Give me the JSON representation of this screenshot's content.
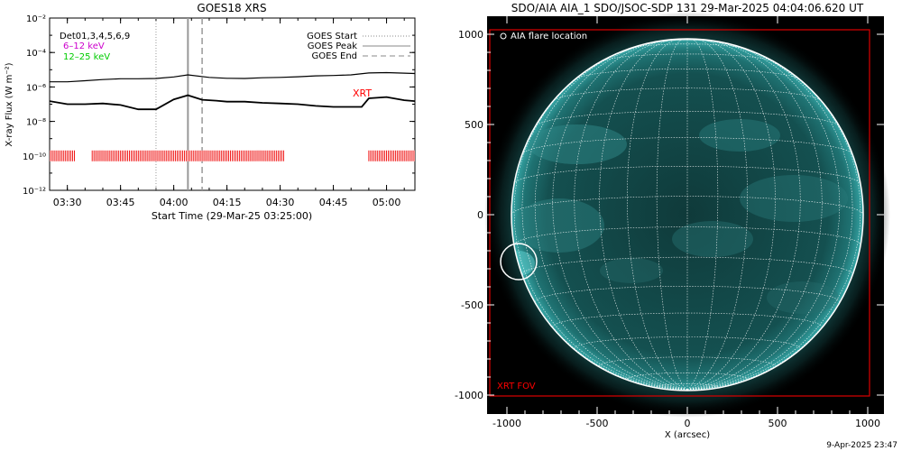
{
  "chart_data": [
    {
      "type": "line",
      "title": "GOES18 XRS",
      "xlabel": "Start Time (29-Mar-25 03:25:00)",
      "ylabel": "X-ray Flux (W m⁻²)",
      "ylim": [
        1e-12,
        0.01
      ],
      "yscale": "log",
      "xlim_minutes_after_03_25": [
        0,
        103
      ],
      "xticks": [
        "03:30",
        "03:45",
        "04:00",
        "04:15",
        "04:30",
        "04:45",
        "05:00"
      ],
      "yticks": [
        "10⁻²",
        "10⁻⁴",
        "10⁻⁶",
        "10⁻⁸",
        "10⁻¹⁰",
        "10⁻¹²"
      ],
      "legend_top_left": [
        "Det01,3,4,5,6,9",
        "6–12 keV",
        "12–25 keV"
      ],
      "legend_top_left_colors": [
        "#000000",
        "#cc00cc",
        "#00cc00"
      ],
      "legend_top_right": [
        {
          "label": "GOES Start",
          "style": "dotted"
        },
        {
          "label": "GOES Peak",
          "style": "solid"
        },
        {
          "label": "GOES End",
          "style": "dashed"
        }
      ],
      "annotation": "XRT",
      "annotation_color": "#ff0000",
      "marker_times": {
        "goes_start": "03:55",
        "goes_peak": "04:04",
        "goes_end": "04:08"
      },
      "series": [
        {
          "x": [
            "03:25",
            "03:30",
            "03:35",
            "03:40",
            "03:45",
            "03:50",
            "03:55",
            "04:00",
            "04:04",
            "04:10",
            "04:15",
            "04:20",
            "04:25",
            "04:30",
            "04:35",
            "04:40",
            "04:45",
            "04:50",
            "04:55",
            "05:00",
            "05:05",
            "05:08"
          ],
          "values": [
            2e-06,
            2e-06,
            2.3e-06,
            2.7e-06,
            3e-06,
            3e-06,
            3.1e-06,
            3.8e-06,
            5e-06,
            3.6e-06,
            3.2e-06,
            3.1e-06,
            3.4e-06,
            3.6e-06,
            3.9e-06,
            4.4e-06,
            4.6e-06,
            5e-06,
            6.5e-06,
            6.8e-06,
            6.3e-06,
            6e-06
          ]
        },
        {
          "x": [
            "03:25",
            "03:30",
            "03:35",
            "03:40",
            "03:45",
            "03:50",
            "03:55",
            "04:00",
            "04:04",
            "04:08",
            "04:12",
            "04:15",
            "04:20",
            "04:25",
            "04:30",
            "04:35",
            "04:40",
            "04:45",
            "04:50",
            "04:53",
            "04:55",
            "05:00",
            "05:05",
            "05:08"
          ],
          "values": [
            1.5e-07,
            1e-07,
            1e-07,
            1.1e-07,
            9e-08,
            5e-08,
            5e-08,
            1.9e-07,
            3.3e-07,
            1.8e-07,
            1.6e-07,
            1.4e-07,
            1.4e-07,
            1.2e-07,
            1.1e-07,
            1e-07,
            8e-08,
            7e-08,
            7e-08,
            7e-08,
            2.2e-07,
            2.6e-07,
            1.7e-07,
            1.5e-07
          ]
        }
      ],
      "observation_intervals": [
        [
          "03:25",
          "03:32"
        ],
        [
          "03:37",
          "04:31"
        ],
        [
          "04:55",
          "05:08"
        ]
      ],
      "observation_level": 1e-10
    },
    {
      "type": "image",
      "title": "SDO/AIA AIA_1 SDO/JSOC-SDP 131 29-Mar-2025 04:04:06.620 UT",
      "xlabel": "X (arcsec)",
      "xlim": [
        -1100,
        1100
      ],
      "ylim": [
        -1100,
        1100
      ],
      "xticks": [
        -1000,
        -500,
        0,
        500,
        1000
      ],
      "yticks": [
        1000,
        500,
        0,
        -500,
        -1000
      ],
      "legend": "AIA flare location",
      "flare_location": [
        -960,
        -260
      ],
      "fov_label": "XRT FOV",
      "fov_color": "#ff0000",
      "solar_radius_arcsec": 975
    }
  ],
  "footer": {
    "timestamp": "9-Apr-2025 23:47"
  }
}
